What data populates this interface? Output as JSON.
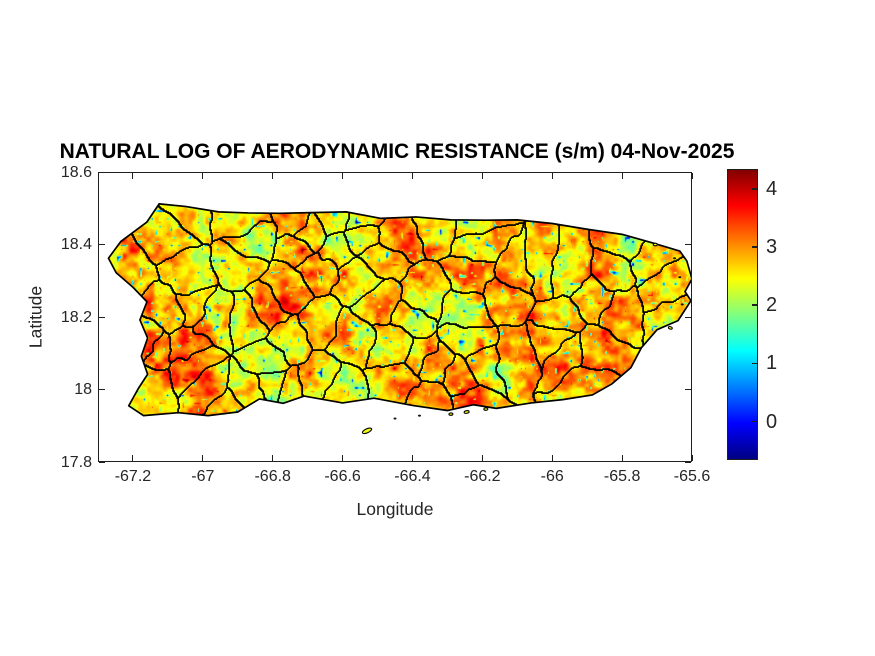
{
  "chart_data": {
    "type": "heatmap",
    "title": "NATURAL LOG OF AERODYNAMIC RESISTANCE (s/m) 04-Nov-2025",
    "date_label": "04-Nov-2025",
    "units": "s/m",
    "xlabel": "Longitude",
    "ylabel": "Latitude",
    "xlim": [
      -67.3,
      -65.6
    ],
    "ylim": [
      17.8,
      18.6
    ],
    "xticks": {
      "values": [
        -67.2,
        -67,
        -66.8,
        -66.6,
        -66.4,
        -66.2,
        -66,
        -65.8,
        -65.6
      ],
      "labels": [
        "-67.2",
        "-67",
        "-66.8",
        "-66.6",
        "-66.4",
        "-66.2",
        "-66",
        "-65.8",
        "-65.6"
      ]
    },
    "yticks": {
      "values": [
        18.6,
        18.4,
        18.2,
        18,
        17.8
      ],
      "labels": [
        "18.6",
        "18.4",
        "18.2",
        "18",
        "17.8"
      ]
    },
    "grid": false,
    "colormap": "jet",
    "clim": [
      -0.66,
      4.34
    ],
    "colorbar": {
      "position": "right",
      "ticks": [
        0,
        1,
        2,
        3,
        4
      ],
      "labels": [
        "0",
        "1",
        "2",
        "3",
        "4"
      ]
    },
    "value_summary": {
      "dominant_range": [
        2,
        3.5
      ],
      "low_value_speckles": true,
      "high_value_spots": true
    },
    "map": {
      "region": "Puerto Rico",
      "boundaries": "municipalities",
      "boundary_color": "#000000",
      "coastline_color": "#000000",
      "main_outline_lonlat": [
        [
          -67.27,
          18.362
        ],
        [
          -67.235,
          18.408
        ],
        [
          -67.16,
          18.462
        ],
        [
          -67.125,
          18.512
        ],
        [
          -67.05,
          18.505
        ],
        [
          -66.955,
          18.49
        ],
        [
          -66.87,
          18.487
        ],
        [
          -66.78,
          18.486
        ],
        [
          -66.69,
          18.488
        ],
        [
          -66.59,
          18.49
        ],
        [
          -66.49,
          18.472
        ],
        [
          -66.39,
          18.476
        ],
        [
          -66.29,
          18.468
        ],
        [
          -66.19,
          18.467
        ],
        [
          -66.1,
          18.468
        ],
        [
          -66.0,
          18.458
        ],
        [
          -65.9,
          18.442
        ],
        [
          -65.8,
          18.428
        ],
        [
          -65.715,
          18.405
        ],
        [
          -65.635,
          18.382
        ],
        [
          -65.615,
          18.355
        ],
        [
          -65.6,
          18.305
        ],
        [
          -65.62,
          18.27
        ],
        [
          -65.603,
          18.245
        ],
        [
          -65.64,
          18.19
        ],
        [
          -65.7,
          18.165
        ],
        [
          -65.745,
          18.115
        ],
        [
          -65.775,
          18.06
        ],
        [
          -65.83,
          18.015
        ],
        [
          -65.885,
          17.985
        ],
        [
          -65.97,
          17.972
        ],
        [
          -66.06,
          17.963
        ],
        [
          -66.16,
          17.948
        ],
        [
          -66.225,
          17.958
        ],
        [
          -66.3,
          17.942
        ],
        [
          -66.4,
          17.956
        ],
        [
          -66.51,
          17.976
        ],
        [
          -66.6,
          17.963
        ],
        [
          -66.71,
          17.982
        ],
        [
          -66.77,
          17.962
        ],
        [
          -66.838,
          17.974
        ],
        [
          -66.9,
          17.938
        ],
        [
          -66.985,
          17.928
        ],
        [
          -67.07,
          17.936
        ],
        [
          -67.17,
          17.928
        ],
        [
          -67.212,
          17.955
        ],
        [
          -67.185,
          18.002
        ],
        [
          -67.158,
          18.042
        ],
        [
          -67.176,
          18.092
        ],
        [
          -67.158,
          18.142
        ],
        [
          -67.18,
          18.192
        ],
        [
          -67.16,
          18.242
        ],
        [
          -67.2,
          18.282
        ],
        [
          -67.248,
          18.322
        ]
      ],
      "islets_lonlat": [
        [
          -66.53,
          17.886,
          5,
          2,
          -25
        ],
        [
          -66.45,
          17.92,
          1.5,
          1,
          0
        ],
        [
          -66.38,
          17.928,
          1.5,
          1,
          0
        ],
        [
          -66.29,
          17.932,
          2,
          1.2,
          0
        ],
        [
          -66.245,
          17.938,
          2.5,
          1.3,
          -10
        ],
        [
          -66.19,
          17.946,
          2,
          1.2,
          0
        ],
        [
          -65.705,
          18.4,
          2,
          1.3,
          0
        ],
        [
          -65.65,
          18.362,
          1.5,
          1,
          0
        ],
        [
          -65.635,
          18.31,
          1.5,
          1,
          0
        ],
        [
          -65.628,
          18.235,
          1.5,
          1,
          0
        ],
        [
          -65.662,
          18.17,
          2,
          1.2,
          20
        ]
      ]
    }
  },
  "styles": {
    "background": "#ffffff",
    "text_color": "#262626",
    "title_color": "#000000",
    "axis_color": "#1f1f1f",
    "colorbar_top_color": "#800000",
    "colorbar_bottom_color": "#000080"
  }
}
